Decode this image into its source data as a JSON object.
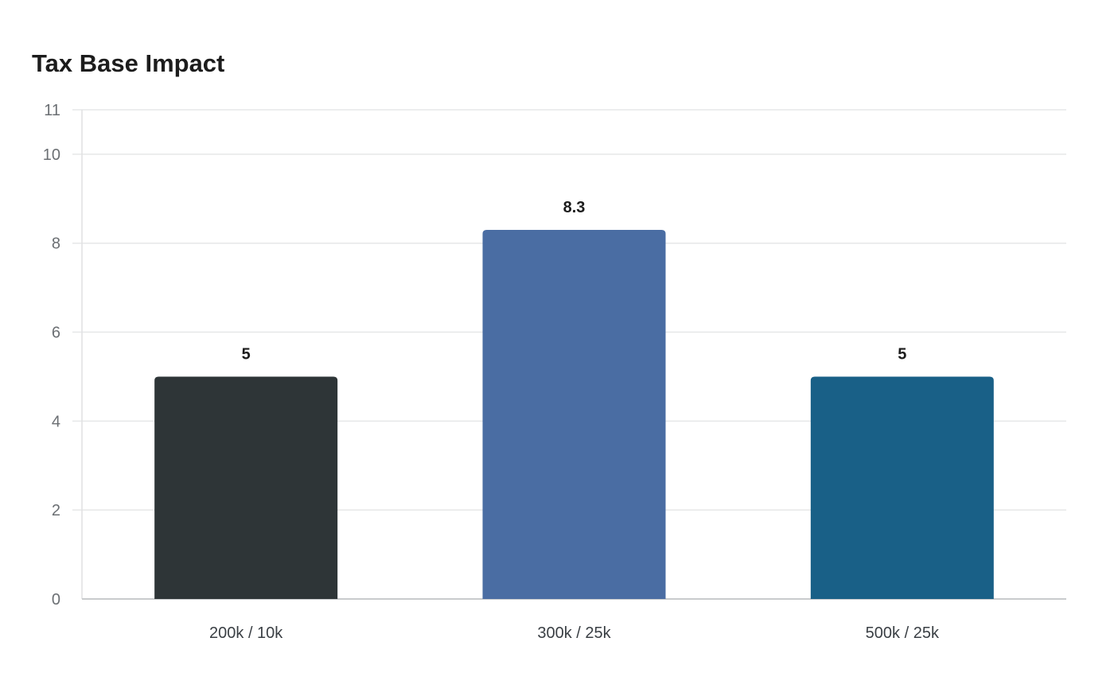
{
  "chart_data": {
    "type": "bar",
    "title": "Tax Base Impact",
    "xlabel": "",
    "ylabel": "",
    "categories": [
      "200k / 10k",
      "300k / 25k",
      "500k / 25k"
    ],
    "values": [
      5,
      8.3,
      5
    ],
    "value_labels": [
      "5",
      "8.3",
      "5"
    ],
    "colors": [
      "#2e3537",
      "#4a6da3",
      "#196087"
    ],
    "ylim": [
      0,
      11
    ],
    "yticks": [
      0,
      2,
      4,
      6,
      8,
      10,
      11
    ],
    "grid": true,
    "legend": "none"
  }
}
